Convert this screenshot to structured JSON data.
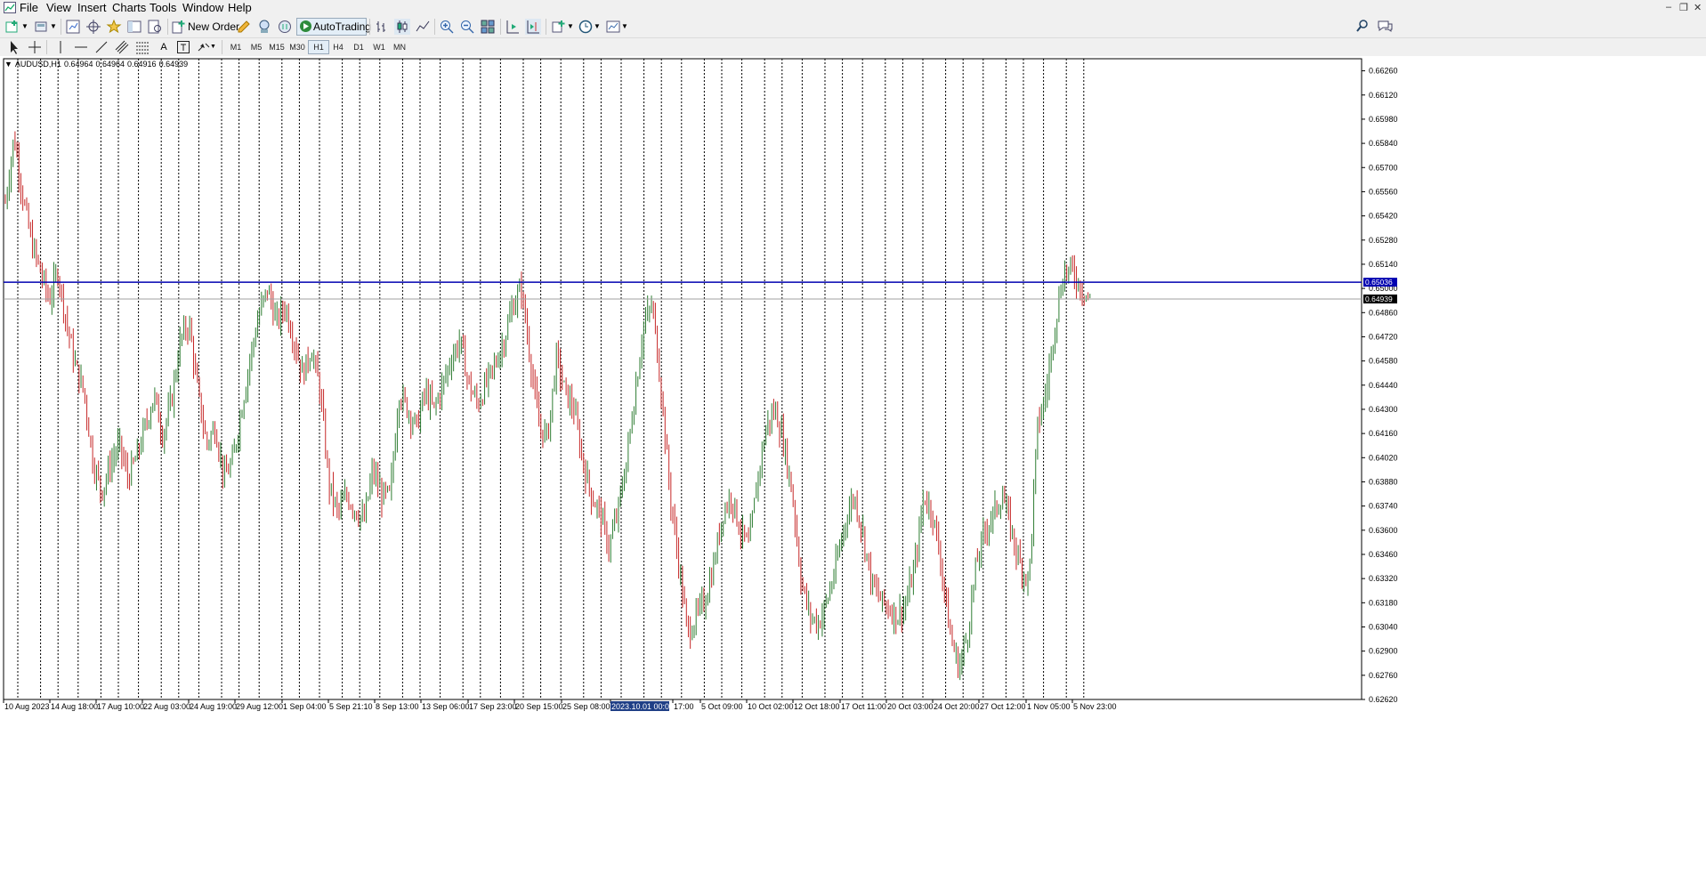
{
  "menu": [
    "File",
    "View",
    "Insert",
    "Charts",
    "Tools",
    "Window",
    "Help"
  ],
  "toolbar": {
    "new_order_label": "New Order",
    "autotrading_label": "AutoTrading",
    "timeframes": [
      "M1",
      "M5",
      "M15",
      "M30",
      "H1",
      "H4",
      "D1",
      "W1",
      "MN"
    ]
  },
  "chart_header": {
    "symbol": "AUDUSD,H1",
    "open": "0.64964",
    "high": "0.64964",
    "low": "0.64916",
    "close": "0.64939"
  },
  "colors": {
    "bull": "#2e7d32",
    "bear": "#c62828",
    "level_line": "#0000b0",
    "bid_line": "#a0a0a0",
    "grid": "#000000"
  },
  "chart_data": {
    "type": "candlestick",
    "symbol": "AUDUSD",
    "timeframe": "H1",
    "ylim": [
      0.6262,
      0.6633
    ],
    "price_ticks": [
      "0.66260",
      "0.66120",
      "0.65980",
      "0.65840",
      "0.65700",
      "0.65560",
      "0.65420",
      "0.65280",
      "0.65140",
      "0.65000",
      "0.64860",
      "0.64720",
      "0.64580",
      "0.64440",
      "0.64300",
      "0.64160",
      "0.64020",
      "0.63880",
      "0.63740",
      "0.63600",
      "0.63460",
      "0.63320",
      "0.63180",
      "0.63040",
      "0.62900",
      "0.62760",
      "0.62620"
    ],
    "time_labels": [
      "10 Aug 2023",
      "14 Aug 18:00",
      "17 Aug 10:00",
      "22 Aug 03:00",
      "24 Aug 19:00",
      "29 Aug 12:00",
      "1 Sep 04:00",
      "5 Sep 21:10",
      "8 Sep 13:00",
      "13 Sep 06:00",
      "17 Sep 23:00",
      "20 Sep 15:00",
      "25 Sep 08:00",
      "2023.10.01 00:00",
      "17:00",
      "5 Oct 09:00",
      "10 Oct 02:00",
      "12 Oct 18:00",
      "17 Oct 11:00",
      "20 Oct 03:00",
      "24 Oct 20:00",
      "27 Oct 12:00",
      "1 Nov 05:00",
      "5 Nov 23:00"
    ],
    "highlighted_time_label": "2023.10.01 00:00",
    "horizontal_level": {
      "value": 0.65036,
      "label": "0.65036"
    },
    "bid": {
      "value": 0.64939,
      "label": "0.64939"
    },
    "path_points": [
      0.655,
      0.6588,
      0.6553,
      0.6526,
      0.651,
      0.6493,
      0.651,
      0.648,
      0.6455,
      0.644,
      0.64,
      0.6382,
      0.6398,
      0.641,
      0.639,
      0.6402,
      0.642,
      0.6438,
      0.6415,
      0.6435,
      0.647,
      0.648,
      0.644,
      0.641,
      0.642,
      0.639,
      0.64,
      0.643,
      0.646,
      0.6485,
      0.65,
      0.648,
      0.649,
      0.647,
      0.645,
      0.6465,
      0.644,
      0.6386,
      0.637,
      0.638,
      0.6372,
      0.6365,
      0.6395,
      0.638,
      0.638,
      0.644,
      0.643,
      0.642,
      0.644,
      0.643,
      0.6444,
      0.646,
      0.647,
      0.6444,
      0.6433,
      0.6445,
      0.6456,
      0.647,
      0.649,
      0.65,
      0.646,
      0.642,
      0.6414,
      0.646,
      0.644,
      0.643,
      0.64,
      0.638,
      0.637,
      0.635,
      0.637,
      0.64,
      0.644,
      0.648,
      0.649,
      0.644,
      0.638,
      0.634,
      0.63,
      0.631,
      0.632,
      0.634,
      0.637,
      0.638,
      0.636,
      0.635,
      0.639,
      0.642,
      0.643,
      0.641,
      0.638,
      0.633,
      0.631,
      0.6306,
      0.632,
      0.634,
      0.6365,
      0.638,
      0.636,
      0.633,
      0.632,
      0.6315,
      0.631,
      0.6318,
      0.634,
      0.638,
      0.637,
      0.634,
      0.63,
      0.628,
      0.63,
      0.634,
      0.636,
      0.637,
      0.638,
      0.636,
      0.634,
      0.633,
      0.642,
      0.644,
      0.648,
      0.651,
      0.651,
      0.65,
      0.64939
    ],
    "path_x_end_fraction": 0.8
  }
}
